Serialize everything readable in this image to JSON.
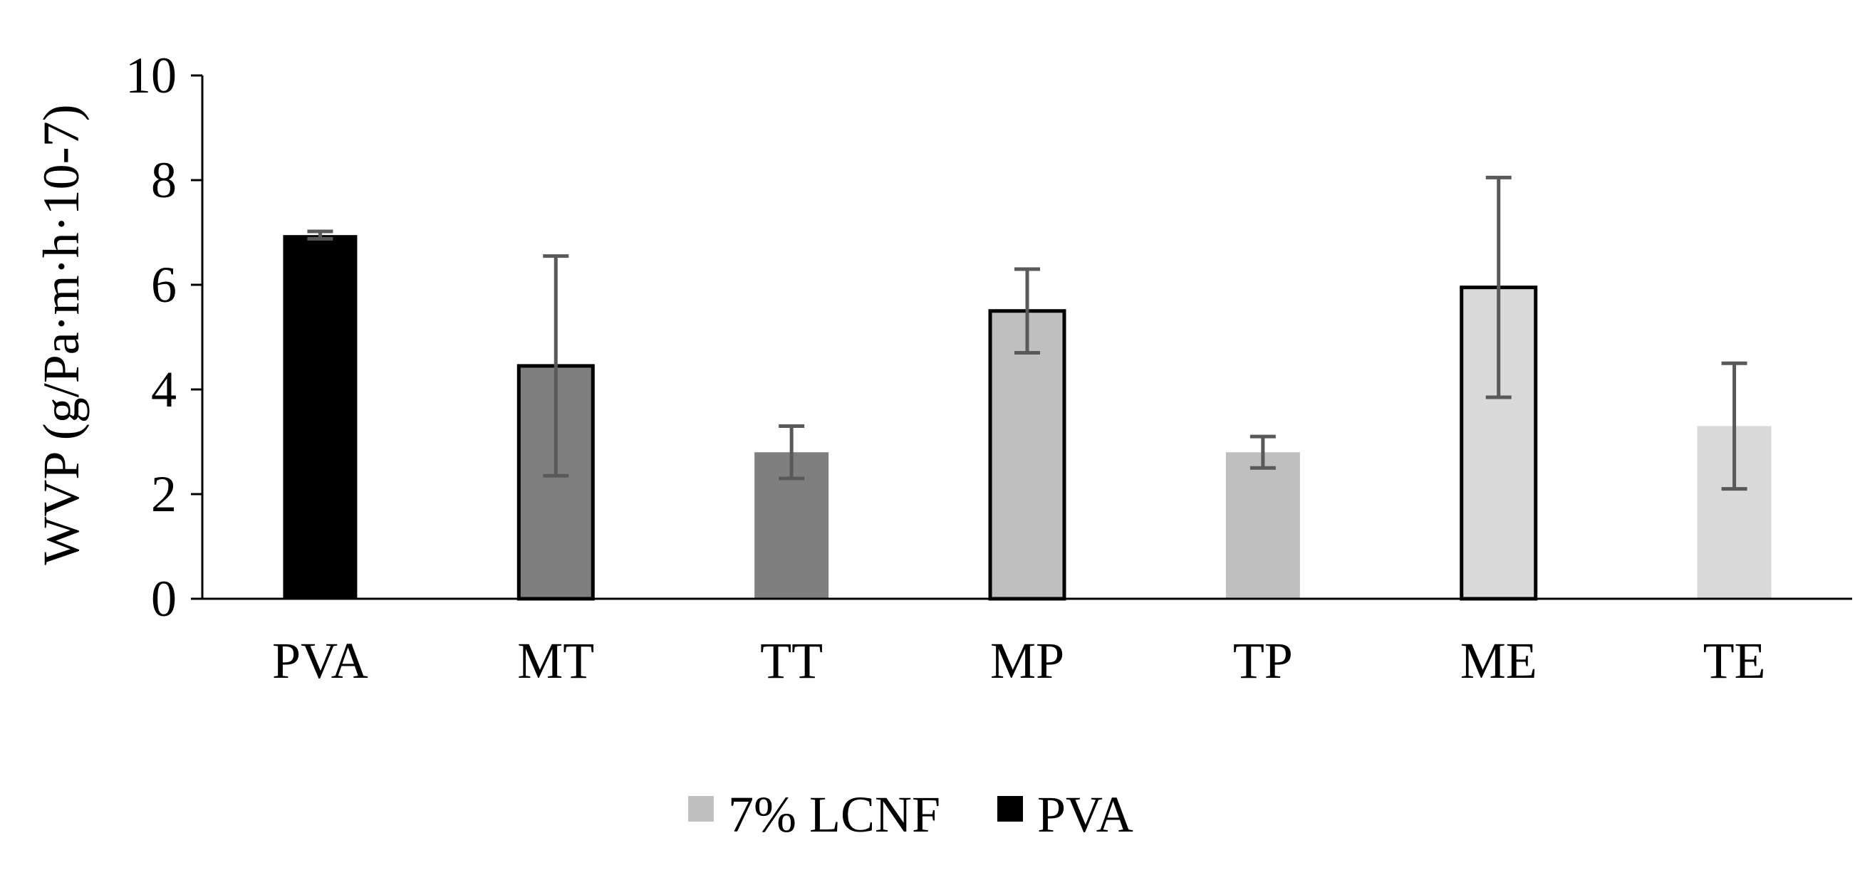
{
  "chart_data": {
    "type": "bar",
    "title": "",
    "xlabel": "",
    "ylabel": "WVP  (g/Pa·m·h·10-7)",
    "ylim": [
      0,
      10
    ],
    "yticks": [
      0,
      2,
      4,
      6,
      8,
      10
    ],
    "ytick_labels": [
      "0",
      "2",
      "4",
      "6",
      "8",
      "10"
    ],
    "grid": false,
    "categories": [
      "PVA",
      "MT",
      "TT",
      "MP",
      "TP",
      "ME",
      "TE"
    ],
    "values": [
      6.95,
      4.45,
      2.8,
      5.5,
      2.8,
      5.95,
      3.3
    ],
    "error_low": [
      6.88,
      2.35,
      2.3,
      4.7,
      2.5,
      3.85,
      2.1
    ],
    "error_high": [
      7.02,
      6.55,
      3.3,
      6.3,
      3.1,
      8.05,
      4.5
    ],
    "bar_fill": [
      "#000000",
      "#7f7f7f",
      "#7f7f7f",
      "#bfbfbf",
      "#bfbfbf",
      "#d9d9d9",
      "#d9d9d9"
    ],
    "bar_outlined": [
      false,
      true,
      false,
      true,
      false,
      true,
      false
    ],
    "error_color": "#595959",
    "legend_position": "bottom",
    "legend": [
      {
        "label": "7% LCNF",
        "color": "#bfbfbf"
      },
      {
        "label": "PVA",
        "color": "#000000"
      }
    ]
  }
}
